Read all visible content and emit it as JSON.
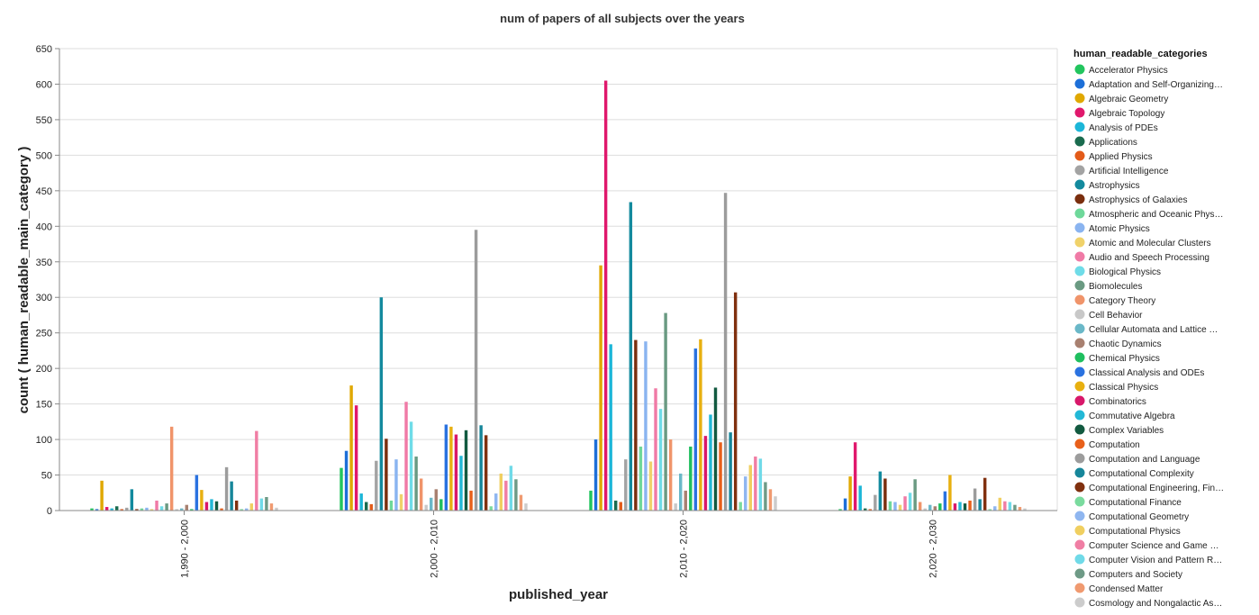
{
  "chart_data": {
    "type": "bar",
    "title": "num of papers of all subjects over the years",
    "xlabel": "published_year",
    "ylabel": "count ( human_readable_main_category )",
    "ylim": [
      0,
      650
    ],
    "yticks": [
      0,
      50,
      100,
      150,
      200,
      250,
      300,
      350,
      400,
      450,
      500,
      550,
      600,
      650
    ],
    "grid": true,
    "legend_title": "human_readable_categories",
    "legend_position": "right",
    "categories": [
      "1,990 - 2,000",
      "2,000 - 2,010",
      "2,010 - 2,020",
      "2,020 - 2,030"
    ],
    "series": [
      {
        "name": "Accelerator Physics",
        "color": "#22c55e",
        "values": [
          3,
          60,
          28,
          2
        ]
      },
      {
        "name": "Adaptation and Self-Organizing…",
        "color": "#1d6fd8",
        "values": [
          2,
          84,
          100,
          17
        ]
      },
      {
        "name": "Algebraic Geometry",
        "color": "#e0a800",
        "values": [
          42,
          176,
          345,
          48
        ]
      },
      {
        "name": "Algebraic Topology",
        "color": "#e0186c",
        "values": [
          5,
          148,
          605,
          96
        ]
      },
      {
        "name": "Analysis of PDEs",
        "color": "#1cb6d8",
        "values": [
          3,
          24,
          234,
          35
        ]
      },
      {
        "name": "Applications",
        "color": "#1a6b4e",
        "values": [
          6,
          12,
          14,
          3
        ]
      },
      {
        "name": "Applied Physics",
        "color": "#e35b19",
        "values": [
          2,
          9,
          12,
          2
        ]
      },
      {
        "name": "Artificial Intelligence",
        "color": "#a3a3a3",
        "values": [
          4,
          70,
          72,
          22
        ]
      },
      {
        "name": "Astrophysics",
        "color": "#138a9e",
        "values": [
          30,
          300,
          434,
          55
        ]
      },
      {
        "name": "Astrophysics of Galaxies",
        "color": "#7a2e0e",
        "values": [
          2,
          101,
          240,
          45
        ]
      },
      {
        "name": "Atmospheric and Oceanic Phys…",
        "color": "#6ed89a",
        "values": [
          3,
          14,
          90,
          13
        ]
      },
      {
        "name": "Atomic Physics",
        "color": "#8ab4f0",
        "values": [
          4,
          72,
          238,
          12
        ]
      },
      {
        "name": "Atomic and Molecular Clusters",
        "color": "#f0d26a",
        "values": [
          2,
          23,
          69,
          8
        ]
      },
      {
        "name": "Audio and Speech Processing",
        "color": "#f07aa6",
        "values": [
          14,
          153,
          172,
          20
        ]
      },
      {
        "name": "Biological Physics",
        "color": "#6fdce8",
        "values": [
          6,
          125,
          143,
          25
        ]
      },
      {
        "name": "Biomolecules",
        "color": "#6a9a82",
        "values": [
          10,
          76,
          278,
          44
        ]
      },
      {
        "name": "Category Theory",
        "color": "#f0946a",
        "values": [
          118,
          45,
          100,
          12
        ]
      },
      {
        "name": "Cell Behavior",
        "color": "#c8c8c8",
        "values": [
          2,
          8,
          10,
          3
        ]
      },
      {
        "name": "Cellular Automata and Lattice …",
        "color": "#6ab8c8",
        "values": [
          3,
          18,
          52,
          8
        ]
      },
      {
        "name": "Chaotic Dynamics",
        "color": "#a88070",
        "values": [
          8,
          30,
          28,
          6
        ]
      },
      {
        "name": "Chemical Physics",
        "color": "#1fbf5f",
        "values": [
          2,
          16,
          90,
          10
        ]
      },
      {
        "name": "Classical Analysis and ODEs",
        "color": "#2a72e0",
        "values": [
          50,
          121,
          228,
          27
        ]
      },
      {
        "name": "Classical Physics",
        "color": "#e8b010",
        "values": [
          29,
          118,
          241,
          50
        ]
      },
      {
        "name": "Combinatorics",
        "color": "#d8186a",
        "values": [
          12,
          107,
          105,
          10
        ]
      },
      {
        "name": "Commutative Algebra",
        "color": "#22b8d6",
        "values": [
          16,
          77,
          135,
          12
        ]
      },
      {
        "name": "Complex Variables",
        "color": "#125a40",
        "values": [
          13,
          113,
          173,
          10
        ]
      },
      {
        "name": "Computation",
        "color": "#e8601a",
        "values": [
          3,
          28,
          96,
          14
        ]
      },
      {
        "name": "Computation and Language",
        "color": "#9c9c9c",
        "values": [
          61,
          395,
          447,
          31
        ]
      },
      {
        "name": "Computational Complexity",
        "color": "#16869a",
        "values": [
          41,
          120,
          110,
          16
        ]
      },
      {
        "name": "Computational Engineering, Fin…",
        "color": "#80300f",
        "values": [
          14,
          106,
          307,
          46
        ]
      },
      {
        "name": "Computational Finance",
        "color": "#7adb9e",
        "values": [
          2,
          6,
          12,
          2
        ]
      },
      {
        "name": "Computational Geometry",
        "color": "#8fb6f0",
        "values": [
          3,
          24,
          48,
          6
        ]
      },
      {
        "name": "Computational Physics",
        "color": "#f0cf60",
        "values": [
          10,
          52,
          64,
          18
        ]
      },
      {
        "name": "Computer Science and Game …",
        "color": "#f07ea4",
        "values": [
          112,
          42,
          76,
          13
        ]
      },
      {
        "name": "Computer Vision and Pattern R…",
        "color": "#70dae8",
        "values": [
          17,
          63,
          73,
          12
        ]
      },
      {
        "name": "Computers and Society",
        "color": "#6e9a86",
        "values": [
          19,
          44,
          40,
          8
        ]
      },
      {
        "name": "Condensed Matter",
        "color": "#f09a70",
        "values": [
          10,
          22,
          30,
          5
        ]
      },
      {
        "name": "Cosmology and Nongalactic As…",
        "color": "#cccccc",
        "values": [
          4,
          10,
          20,
          3
        ]
      }
    ]
  }
}
